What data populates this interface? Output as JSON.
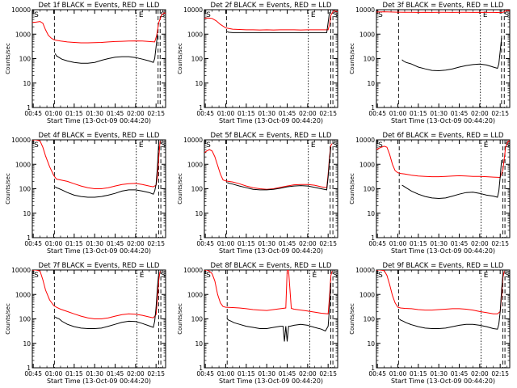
{
  "chart_data": {
    "type": "line",
    "xlabel": "Start Time (13-Oct-09 00:44:20)",
    "ylabel": "Counts/sec",
    "x_ticks": [
      "00:45",
      "01:00",
      "01:15",
      "01:30",
      "01:45",
      "02:00",
      "02:15"
    ],
    "x_tick_minutes": [
      45,
      60,
      75,
      90,
      105,
      120,
      135
    ],
    "xlim_minutes": [
      44.3,
      142
    ],
    "y_ticks": [
      "1",
      "10",
      "100",
      "1000",
      "10000"
    ],
    "yscale": "log",
    "ylim": [
      1,
      10000
    ],
    "colors": {
      "events": "#000000",
      "lld": "#ff0000"
    },
    "corner_labels": [
      "S",
      "E",
      "S"
    ],
    "panels": [
      {
        "title": "Det 1f BLACK = Events, RED = LLD",
        "vlines_minutes": [
          60.5,
          120.5,
          136.5,
          138
        ],
        "lld": {
          "x": [
            44.3,
            47,
            50,
            52,
            54,
            56,
            58,
            60,
            62,
            65,
            70,
            75,
            80,
            85,
            90,
            95,
            100,
            105,
            110,
            115,
            120,
            125,
            130,
            134,
            135.5,
            137,
            139,
            141,
            142
          ],
          "y": [
            3000,
            3100,
            3300,
            2800,
            1500,
            900,
            700,
            600,
            560,
            520,
            480,
            460,
            440,
            440,
            450,
            460,
            480,
            500,
            510,
            520,
            530,
            520,
            500,
            480,
            900,
            3000,
            6000,
            7500,
            7000
          ]
        },
        "events": {
          "x": [
            61,
            62,
            64,
            66,
            70,
            75,
            80,
            85,
            90,
            95,
            100,
            105,
            110,
            115,
            120,
            125,
            130,
            133,
            134,
            135,
            136
          ],
          "y": [
            160,
            130,
            110,
            95,
            80,
            70,
            65,
            65,
            70,
            85,
            100,
            115,
            120,
            120,
            110,
            95,
            80,
            70,
            100,
            300,
            1000
          ]
        }
      },
      {
        "title": "Det 2f BLACK = Events, RED = LLD",
        "vlines_minutes": [
          60.5,
          120.5,
          137,
          138.5
        ],
        "lld": {
          "x": [
            44.3,
            47,
            50,
            53,
            56,
            60,
            65,
            70,
            75,
            80,
            85,
            90,
            95,
            100,
            105,
            110,
            115,
            120,
            125,
            130,
            135,
            136,
            137,
            139,
            141,
            142
          ],
          "y": [
            4500,
            4600,
            4400,
            3500,
            2500,
            1800,
            1600,
            1550,
            1500,
            1500,
            1480,
            1500,
            1480,
            1500,
            1500,
            1500,
            1480,
            1500,
            1500,
            1500,
            1500,
            2500,
            6000,
            9000,
            8500,
            8000
          ]
        },
        "events": {
          "x": [
            61,
            62,
            65,
            70,
            75,
            80,
            85,
            90,
            95,
            100,
            105,
            110,
            115,
            120,
            125,
            130,
            134,
            135,
            136
          ],
          "y": [
            1300,
            1200,
            1150,
            1150,
            1150,
            1150,
            1150,
            1150,
            1150,
            1150,
            1150,
            1150,
            1150,
            1150,
            1150,
            1150,
            1150,
            3000,
            8000
          ]
        }
      },
      {
        "title": "Det 3f BLACK = Events, RED = LLD",
        "vlines_minutes": [
          60.5,
          120.5,
          136,
          138
        ],
        "lld": {
          "x": [
            44.3,
            50,
            55,
            60,
            65,
            70,
            75,
            80,
            85,
            90,
            95,
            100,
            105,
            110,
            115,
            120,
            125,
            130,
            135,
            137,
            140,
            142
          ],
          "y": [
            8000,
            8200,
            8000,
            7900,
            7800,
            7800,
            7700,
            7800,
            7700,
            7800,
            7800,
            7700,
            7800,
            7800,
            7700,
            7800,
            7700,
            7700,
            7600,
            7800,
            9500,
            9000
          ]
        },
        "events": {
          "x": [
            63,
            64,
            66,
            70,
            75,
            80,
            85,
            90,
            95,
            100,
            105,
            110,
            115,
            120,
            125,
            130,
            133,
            134,
            135,
            136
          ],
          "y": [
            90,
            80,
            70,
            60,
            45,
            38,
            33,
            32,
            34,
            38,
            45,
            52,
            57,
            60,
            55,
            45,
            40,
            60,
            200,
            700
          ]
        }
      },
      {
        "title": "Det 4f BLACK = Events, RED = LLD",
        "vlines_minutes": [
          60.5,
          120.5,
          137,
          138.5
        ],
        "lld": {
          "x": [
            44.3,
            47,
            50,
            52,
            54,
            57,
            60,
            62,
            65,
            70,
            75,
            80,
            85,
            90,
            95,
            100,
            105,
            110,
            115,
            120,
            125,
            130,
            133,
            135,
            136,
            137,
            138
          ],
          "y": [
            10000,
            10000,
            9000,
            5000,
            2200,
            800,
            350,
            250,
            230,
            200,
            160,
            130,
            110,
            100,
            100,
            110,
            130,
            150,
            160,
            165,
            150,
            130,
            120,
            140,
            300,
            2000,
            9000
          ]
        },
        "events": {
          "x": [
            61,
            62,
            64,
            66,
            70,
            75,
            80,
            85,
            90,
            95,
            100,
            105,
            110,
            115,
            120,
            125,
            130,
            133,
            134,
            135,
            136,
            137
          ],
          "y": [
            120,
            110,
            100,
            90,
            70,
            55,
            48,
            45,
            45,
            48,
            55,
            65,
            80,
            90,
            90,
            80,
            70,
            60,
            80,
            150,
            800,
            9000
          ]
        }
      },
      {
        "title": "Det 5f BLACK = Events, RED = LLD",
        "vlines_minutes": [
          60.5,
          120.5,
          136.5,
          138.5
        ],
        "lld": {
          "x": [
            44.3,
            46,
            48,
            50,
            52,
            54,
            56,
            58,
            60,
            62,
            65,
            70,
            75,
            80,
            85,
            90,
            95,
            100,
            105,
            110,
            115,
            120,
            125,
            130,
            134,
            135,
            136,
            137,
            138
          ],
          "y": [
            3000,
            3500,
            4000,
            3500,
            2000,
            900,
            400,
            230,
            210,
            200,
            190,
            160,
            130,
            110,
            100,
            95,
            100,
            115,
            130,
            145,
            150,
            150,
            140,
            120,
            110,
            400,
            2000,
            6000,
            7000
          ]
        },
        "events": {
          "x": [
            61,
            62,
            64,
            66,
            70,
            75,
            80,
            85,
            90,
            95,
            100,
            105,
            110,
            115,
            120,
            125,
            130,
            134,
            135,
            136,
            137
          ],
          "y": [
            180,
            170,
            160,
            150,
            130,
            110,
            95,
            90,
            90,
            95,
            105,
            120,
            130,
            135,
            130,
            115,
            100,
            90,
            300,
            1500,
            5000
          ]
        }
      },
      {
        "title": "Det 6f BLACK = Events, RED = LLD",
        "vlines_minutes": [
          61,
          121,
          137,
          138.5
        ],
        "lld": {
          "x": [
            44.3,
            46,
            48,
            50,
            52,
            54,
            56,
            58,
            60,
            62,
            65,
            70,
            75,
            80,
            85,
            90,
            95,
            100,
            105,
            110,
            115,
            120,
            125,
            130,
            135,
            137,
            139,
            141,
            142
          ],
          "y": [
            4000,
            4500,
            5000,
            5500,
            5000,
            2500,
            1000,
            550,
            450,
            420,
            400,
            360,
            330,
            320,
            310,
            310,
            320,
            330,
            340,
            330,
            320,
            320,
            310,
            300,
            290,
            600,
            5000,
            9000,
            8500
          ]
        },
        "events": {
          "x": [
            63,
            64,
            66,
            70,
            75,
            80,
            85,
            90,
            95,
            100,
            105,
            110,
            115,
            120,
            125,
            130,
            133,
            134,
            135,
            136
          ],
          "y": [
            140,
            130,
            110,
            80,
            60,
            48,
            42,
            40,
            42,
            50,
            60,
            70,
            72,
            65,
            55,
            50,
            45,
            80,
            300,
            1500
          ]
        }
      },
      {
        "title": "Det 7f BLACK = Events, RED = LLD",
        "vlines_minutes": [
          60.5,
          121,
          137,
          138.5
        ],
        "lld": {
          "x": [
            44.3,
            47,
            50,
            52,
            54,
            57,
            60,
            62,
            65,
            70,
            75,
            80,
            85,
            90,
            95,
            100,
            105,
            110,
            115,
            120,
            125,
            130,
            133,
            135,
            136,
            137,
            138
          ],
          "y": [
            10000,
            10000,
            9000,
            4000,
            1500,
            600,
            350,
            300,
            250,
            200,
            160,
            130,
            110,
            100,
            100,
            110,
            130,
            150,
            160,
            155,
            140,
            120,
            110,
            150,
            600,
            4000,
            9000
          ]
        },
        "events": {
          "x": [
            61,
            62,
            64,
            66,
            70,
            75,
            80,
            85,
            90,
            95,
            100,
            105,
            110,
            115,
            120,
            125,
            130,
            133,
            134,
            135,
            136,
            137
          ],
          "y": [
            120,
            110,
            100,
            80,
            60,
            48,
            42,
            40,
            40,
            42,
            50,
            60,
            72,
            80,
            78,
            65,
            52,
            45,
            80,
            300,
            2000,
            8000
          ]
        }
      },
      {
        "title": "Det 8f BLACK = Events, RED = LLD",
        "vlines_minutes": [
          61,
          121.5,
          137,
          138.5
        ],
        "lld": {
          "x": [
            44.3,
            46,
            48,
            50,
            52,
            54,
            56,
            58,
            60,
            65,
            70,
            75,
            80,
            85,
            90,
            95,
            100,
            104,
            105,
            106,
            108,
            110,
            115,
            120,
            125,
            130,
            135,
            136,
            137,
            138
          ],
          "y": [
            10000,
            10000,
            9000,
            7000,
            3500,
            1000,
            450,
            320,
            300,
            290,
            280,
            260,
            240,
            230,
            220,
            240,
            260,
            280,
            10000,
            10000,
            270,
            250,
            230,
            210,
            190,
            170,
            160,
            800,
            6000,
            9000
          ]
        },
        "events": {
          "x": [
            61,
            62,
            64,
            66,
            70,
            75,
            80,
            85,
            90,
            95,
            100,
            102,
            103,
            104,
            105,
            106,
            107,
            110,
            115,
            120,
            125,
            130,
            133,
            135,
            136,
            137
          ],
          "y": [
            100,
            90,
            80,
            70,
            60,
            50,
            45,
            40,
            40,
            45,
            50,
            50,
            12,
            50,
            12,
            50,
            50,
            55,
            60,
            55,
            45,
            38,
            32,
            50,
            300,
            3000
          ]
        }
      },
      {
        "title": "Det 9f BLACK = Events, RED = LLD",
        "vlines_minutes": [
          60.5,
          121,
          137,
          138.5
        ],
        "lld": {
          "x": [
            44.3,
            47,
            50,
            52,
            54,
            56,
            58,
            60,
            62,
            65,
            70,
            75,
            80,
            85,
            90,
            95,
            100,
            105,
            110,
            115,
            120,
            125,
            130,
            133,
            135,
            136,
            137,
            138
          ],
          "y": [
            10000,
            10000,
            9500,
            6000,
            2500,
            900,
            450,
            300,
            280,
            270,
            260,
            240,
            230,
            230,
            240,
            250,
            260,
            260,
            250,
            230,
            200,
            180,
            160,
            160,
            200,
            800,
            5000,
            9000
          ]
        },
        "events": {
          "x": [
            61,
            62,
            64,
            66,
            70,
            75,
            80,
            85,
            90,
            95,
            100,
            105,
            110,
            115,
            120,
            125,
            130,
            133,
            134,
            135,
            136,
            137
          ],
          "y": [
            100,
            90,
            80,
            70,
            58,
            48,
            42,
            40,
            40,
            42,
            48,
            55,
            60,
            60,
            55,
            48,
            40,
            38,
            60,
            200,
            1500,
            7000
          ]
        }
      }
    ]
  }
}
